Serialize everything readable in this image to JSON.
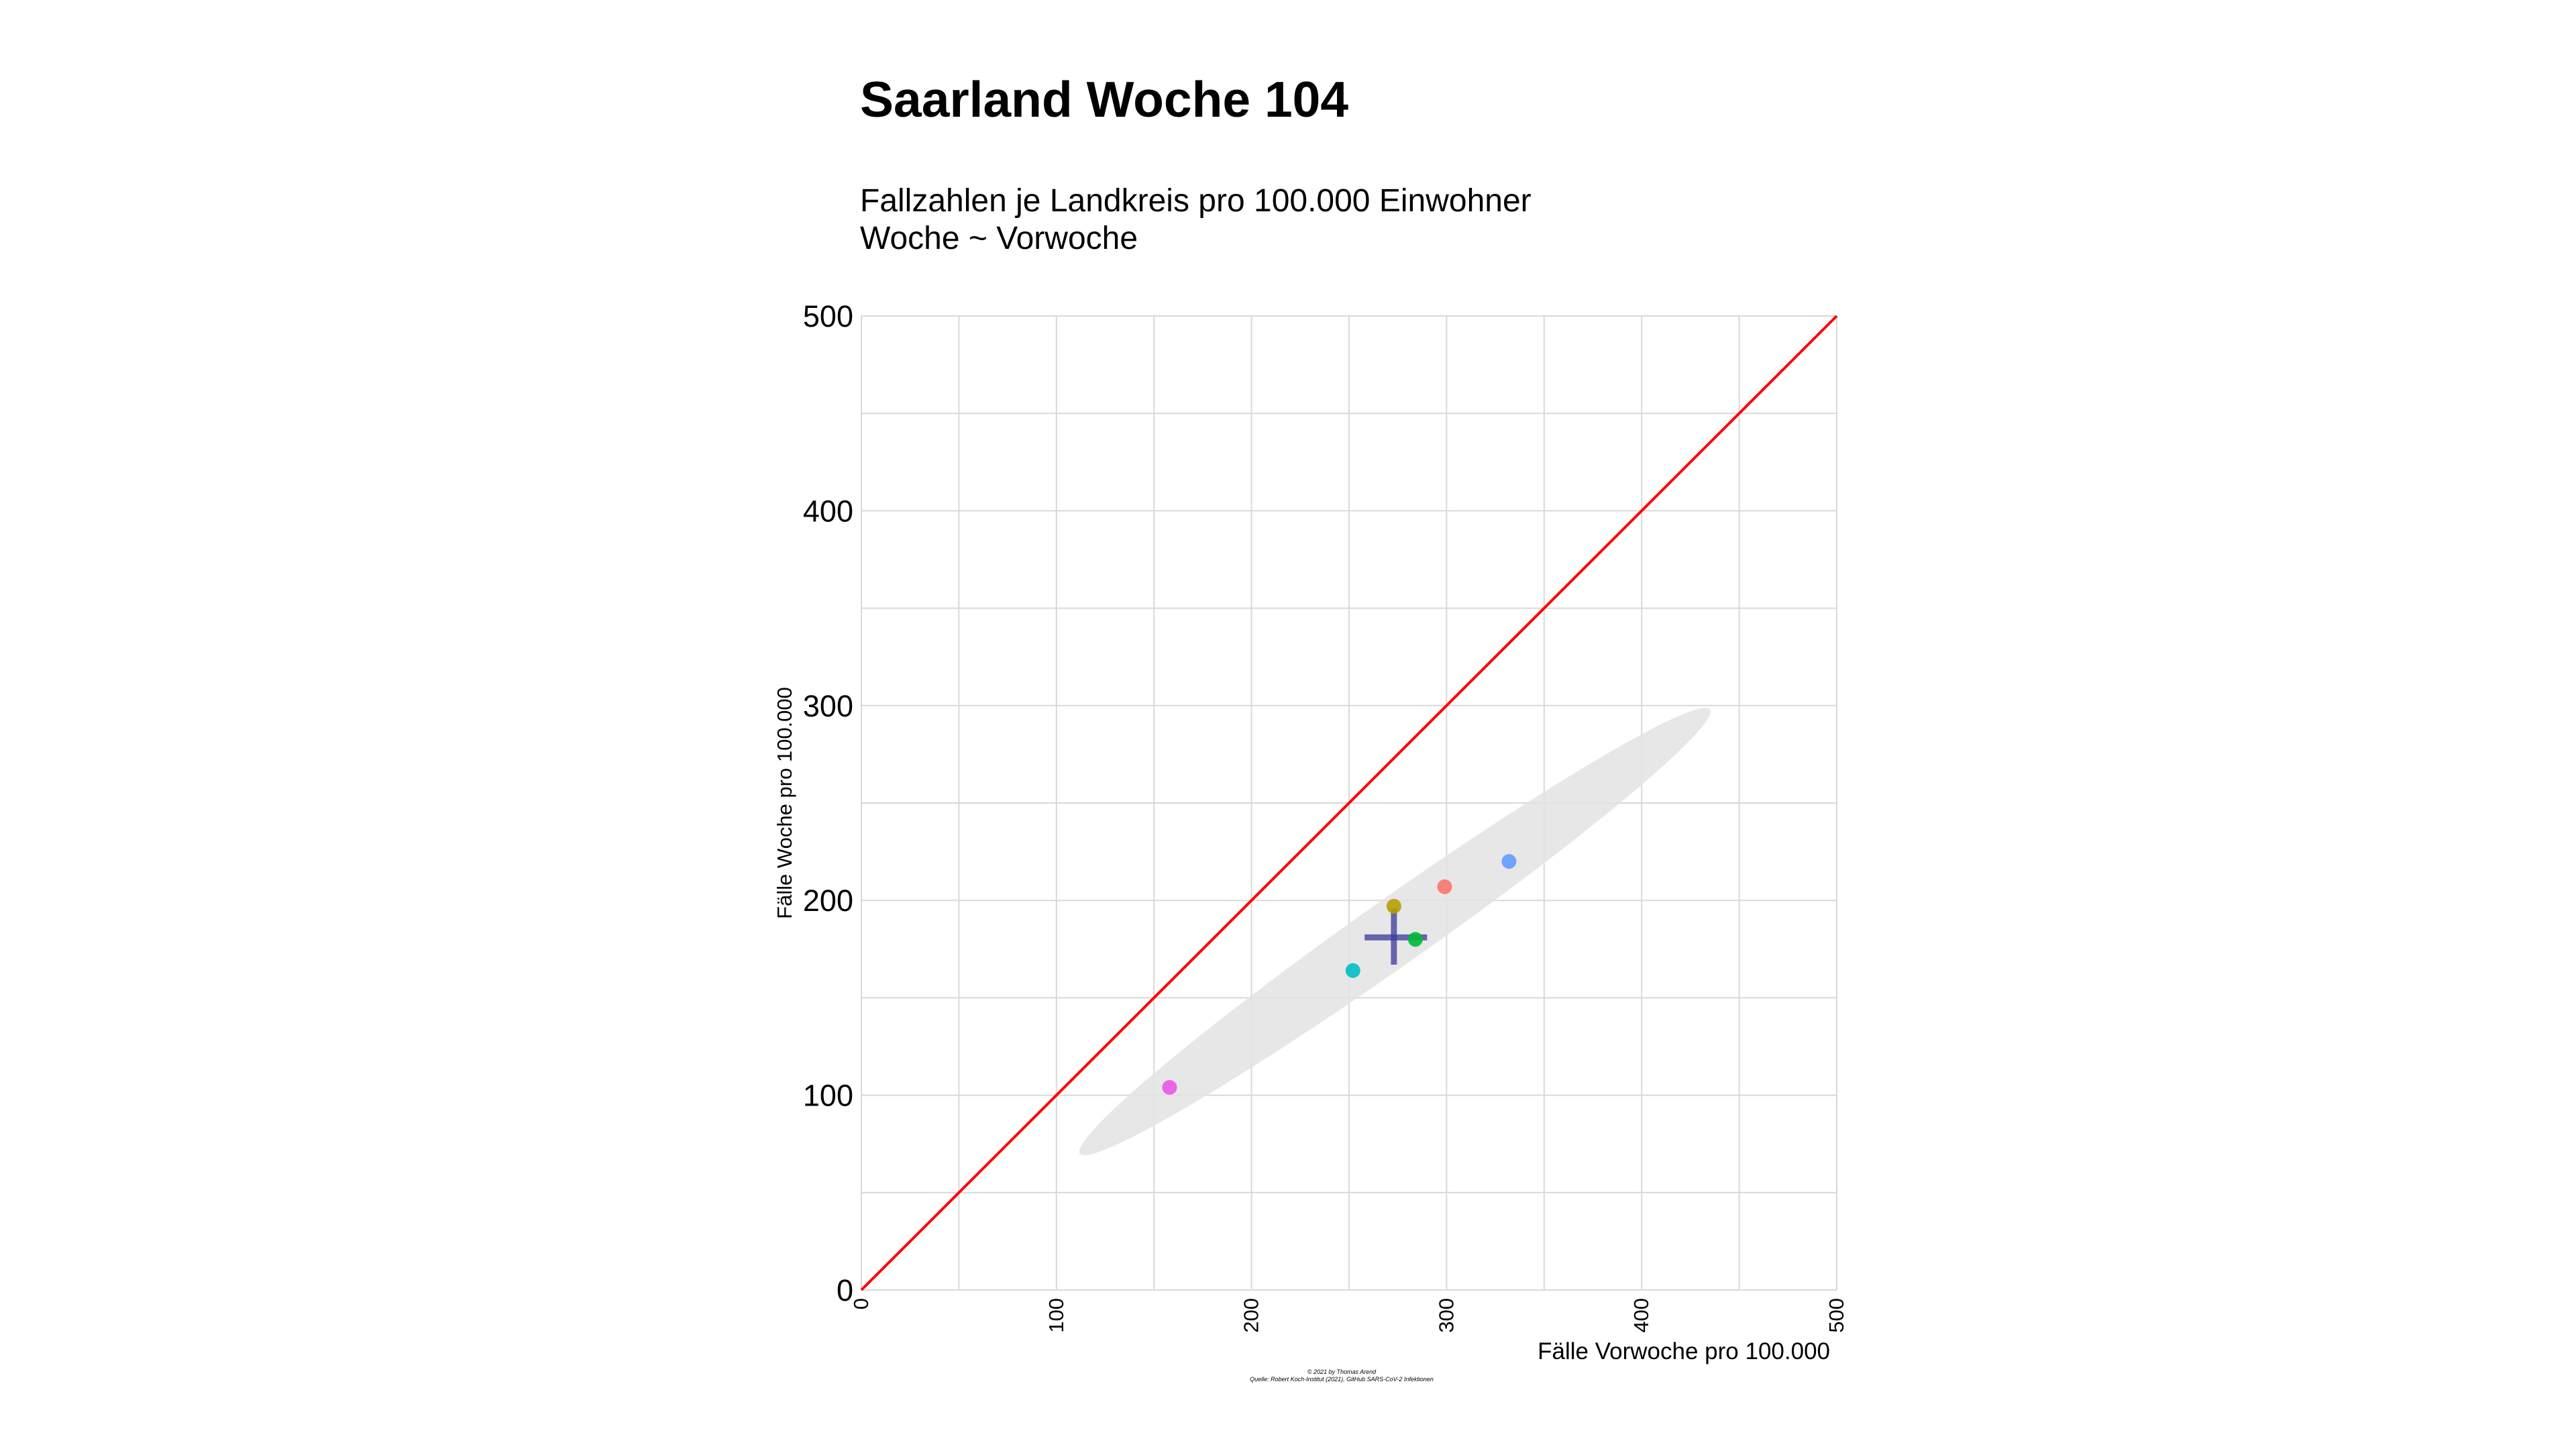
{
  "title": "Saarland Woche 104",
  "subtitle_line1": "Fallzahlen je Landkreis pro 100.000 Einwohner",
  "subtitle_line2": "Woche ~ Vorwoche",
  "caption_line1": "© 2021 by Thomas Arend",
  "caption_line2": "Quelle: Robert Koch-Institut (2021), GitHub SARS-CoV-2 Infektionen",
  "colors": {
    "diagonal": "#ff0000",
    "ellipse": "#e3e3e3",
    "grid": "#d9d9d9",
    "mean_cross": "#3a3a9a"
  },
  "chart_data": {
    "type": "scatter",
    "xlabel": "Fälle Vorwoche pro 100.000",
    "ylabel": "Fälle Woche pro 100.000",
    "xlim": [
      0,
      500
    ],
    "ylim": [
      0,
      500
    ],
    "x_ticks": [
      "0",
      "100",
      "200",
      "300",
      "400",
      "500"
    ],
    "y_ticks": [
      "0",
      "100",
      "200",
      "300",
      "400",
      "500"
    ],
    "grid": true,
    "reference_line": {
      "x": [
        0,
        500
      ],
      "y": [
        0,
        500
      ]
    },
    "ellipse_axis_ends": [
      [
        112,
        70
      ],
      [
        435,
        298
      ]
    ],
    "ellipse_minor_halfwidth": 17,
    "mean_cross": {
      "x": 273,
      "y": 181,
      "x_range": [
        258,
        290
      ],
      "y_range": [
        167,
        196
      ]
    },
    "points": [
      {
        "x": 158,
        "y": 104,
        "color": "#ea55e6"
      },
      {
        "x": 252,
        "y": 164,
        "color": "#00bfc4"
      },
      {
        "x": 273,
        "y": 197,
        "color": "#b79f00"
      },
      {
        "x": 284,
        "y": 180,
        "color": "#00ba38"
      },
      {
        "x": 299,
        "y": 207,
        "color": "#f8766d"
      },
      {
        "x": 332,
        "y": 220,
        "color": "#619cff"
      }
    ]
  }
}
